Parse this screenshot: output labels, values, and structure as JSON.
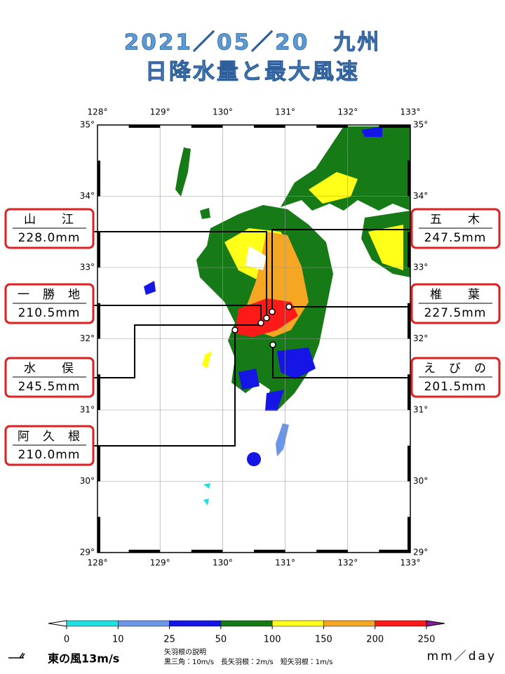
{
  "title": [
    "2021／05／20　九州",
    "日降水量と最大風速"
  ],
  "map": {
    "lon_labels": [
      "128°",
      "129°",
      "130°",
      "131°",
      "132°",
      "133°"
    ],
    "lat_labels": [
      "35°",
      "34°",
      "33°",
      "32°",
      "31°",
      "30°",
      "29°"
    ]
  },
  "stations": [
    {
      "name": "山　　江",
      "amount": "228.0mm"
    },
    {
      "name": "一　勝　地",
      "amount": "210.5mm"
    },
    {
      "name": "水　　俣",
      "amount": "245.5mm"
    },
    {
      "name": "阿　久　根",
      "amount": "210.0mm"
    },
    {
      "name": "五　　木",
      "amount": "247.5mm"
    },
    {
      "name": "椎　　葉",
      "amount": "227.5mm"
    },
    {
      "name": "え　び　の",
      "amount": "201.5mm"
    }
  ],
  "colorbar": {
    "ticks": [
      0,
      10,
      25,
      50,
      100,
      150,
      200,
      250
    ],
    "colors": [
      "#1fe0e0",
      "#6b95e8",
      "#1515e6",
      "#167a16",
      "#ffff1a",
      "#f5a623",
      "#ff1a1a"
    ],
    "over_color": "#8b1a9a",
    "under_color": "#ffffff",
    "unit": "mm／day"
  },
  "wind_legend": {
    "label": "東の風13m/s",
    "notes": [
      "矢羽根の説明",
      "黒三角：10m/s　長矢羽根：2m/s　短矢羽根：1m/s"
    ]
  }
}
